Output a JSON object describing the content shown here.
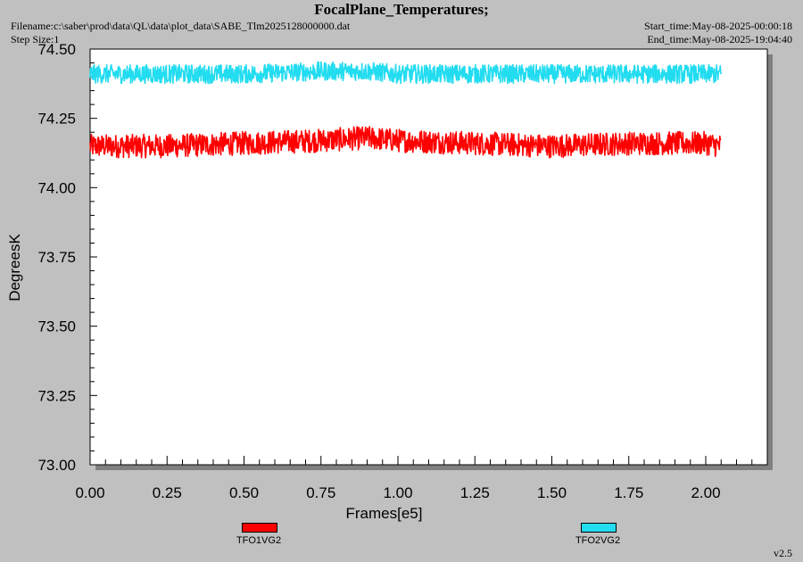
{
  "header": {
    "title": "FocalPlane_Temperatures;",
    "filename": "Filename:c:\\saber\\prod\\data\\QL\\data\\plot_data\\SABE_Tlm2025128000000.dat",
    "step_size": "Step Size:1",
    "start_time": "Start_time:May-08-2025-00:00:18",
    "end_time": "End_time:May-08-2025-19:04:40"
  },
  "footer": {
    "version": "v2.5"
  },
  "colors": {
    "series1": "#ff0000",
    "series2": "#22dcf0",
    "plot_bg": "#ffffff",
    "page_bg": "#c0c0c0"
  },
  "chart_data": {
    "type": "line",
    "title": "FocalPlane_Temperatures;",
    "xlabel": "Frames[e5]",
    "ylabel": "DegreesK",
    "xlim": [
      0.0,
      2.2
    ],
    "ylim": [
      73.0,
      74.5
    ],
    "x_ticks": [
      "0.00",
      "0.25",
      "0.50",
      "0.75",
      "1.00",
      "1.25",
      "1.50",
      "1.75",
      "2.00"
    ],
    "y_ticks": [
      "73.00",
      "73.25",
      "73.50",
      "73.75",
      "74.00",
      "74.25",
      "74.50"
    ],
    "grid": false,
    "legend_placement": "bottom",
    "series": [
      {
        "name": "TFO1VG2",
        "color": "#ff0000",
        "x": [
          0.0,
          0.25,
          0.5,
          0.75,
          0.9,
          1.0,
          1.25,
          1.5,
          1.75,
          2.0,
          2.05
        ],
        "y": [
          74.15,
          74.15,
          74.16,
          74.17,
          74.18,
          74.17,
          74.16,
          74.15,
          74.16,
          74.16,
          74.15
        ],
        "noise_band": [
          74.1,
          74.2
        ]
      },
      {
        "name": "TFO2VG2",
        "color": "#22dcf0",
        "x": [
          0.0,
          0.25,
          0.5,
          0.75,
          0.9,
          1.0,
          1.25,
          1.5,
          1.75,
          2.0,
          2.05
        ],
        "y": [
          74.41,
          74.41,
          74.41,
          74.42,
          74.42,
          74.41,
          74.41,
          74.41,
          74.41,
          74.41,
          74.41
        ],
        "noise_band": [
          74.37,
          74.45
        ]
      }
    ]
  }
}
